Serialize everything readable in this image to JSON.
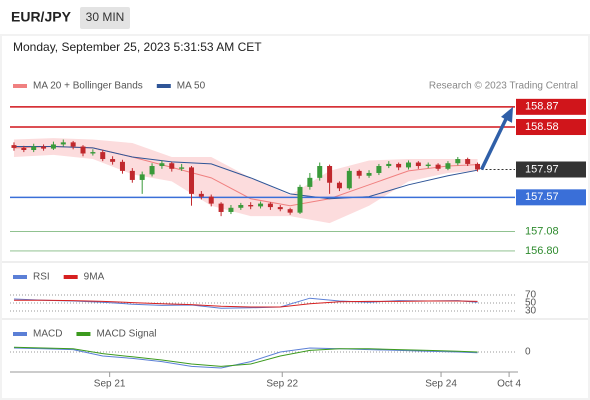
{
  "header": {
    "symbol": "EUR/JPY",
    "interval": "30 MIN",
    "timestamp": "Monday, September 25, 2023 5:31:53 AM CET"
  },
  "chart_data": [
    {
      "type": "candlestick",
      "source": "Research © 2023 Trading Central",
      "up_color": "#3a9a3a",
      "down_color": "#c0282d",
      "open": [
        158.32,
        158.28,
        158.25,
        158.3,
        158.27,
        158.33,
        158.36,
        158.3,
        158.2,
        158.22,
        158.12,
        158.08,
        157.95,
        157.82,
        157.9,
        158.02,
        158.06,
        157.98,
        158.0,
        157.62,
        157.58,
        157.48,
        157.36,
        157.42,
        157.46,
        157.44,
        157.48,
        157.43,
        157.4,
        157.35,
        157.72,
        157.85,
        158.02,
        157.78,
        157.7,
        157.95,
        157.88,
        157.92,
        158.02,
        158.05,
        158.0,
        158.07,
        158.02,
        158.04,
        157.98,
        158.06,
        158.12,
        158.05
      ],
      "high": [
        158.36,
        158.31,
        158.34,
        158.33,
        158.37,
        158.4,
        158.38,
        158.32,
        158.26,
        158.25,
        158.16,
        158.11,
        157.99,
        157.94,
        158.06,
        158.1,
        158.08,
        158.05,
        158.02,
        157.66,
        157.61,
        157.5,
        157.46,
        157.49,
        157.5,
        157.51,
        157.5,
        157.46,
        157.42,
        157.75,
        157.92,
        158.07,
        158.04,
        157.8,
        157.99,
        157.97,
        157.96,
        158.05,
        158.09,
        158.07,
        158.1,
        158.09,
        158.07,
        158.06,
        158.09,
        158.15,
        158.14,
        158.07
      ],
      "low": [
        158.24,
        158.22,
        158.22,
        158.24,
        158.25,
        158.3,
        158.26,
        158.16,
        158.17,
        158.09,
        158.04,
        157.91,
        157.78,
        157.62,
        157.87,
        157.98,
        157.94,
        157.95,
        157.45,
        157.54,
        157.44,
        157.3,
        157.33,
        157.39,
        157.4,
        157.41,
        157.39,
        157.37,
        157.32,
        157.33,
        157.68,
        157.81,
        157.62,
        157.66,
        157.68,
        157.84,
        157.85,
        157.89,
        157.99,
        157.96,
        157.97,
        157.98,
        157.99,
        157.95,
        157.96,
        158.03,
        158.02,
        157.94
      ],
      "close": [
        158.28,
        158.25,
        158.3,
        158.27,
        158.33,
        158.36,
        158.3,
        158.2,
        158.22,
        158.12,
        158.08,
        157.95,
        157.82,
        157.9,
        158.02,
        158.06,
        157.98,
        158.0,
        157.62,
        157.58,
        157.48,
        157.36,
        157.42,
        157.46,
        157.44,
        157.48,
        157.43,
        157.4,
        157.35,
        157.72,
        157.85,
        158.02,
        157.78,
        157.7,
        157.95,
        157.88,
        157.92,
        158.02,
        158.05,
        158.0,
        158.07,
        158.02,
        158.04,
        157.98,
        158.06,
        158.12,
        158.05,
        157.97
      ],
      "series_x": [
        0,
        4,
        8,
        12,
        16,
        20,
        24,
        28,
        32,
        36,
        40,
        44,
        47
      ],
      "series": [
        {
          "name": "MA 20 + Bollinger Bands",
          "color": "#f08080",
          "band_color": "#fbd3d5",
          "values": [
            158.28,
            158.3,
            158.28,
            158.15,
            158.0,
            157.85,
            157.55,
            157.45,
            157.55,
            157.75,
            157.95,
            158.02,
            158.04
          ],
          "upper": [
            158.4,
            158.42,
            158.4,
            158.35,
            158.15,
            158.15,
            157.85,
            157.6,
            157.95,
            158.1,
            158.12,
            158.12,
            158.12
          ],
          "lower": [
            158.15,
            158.18,
            158.12,
            157.9,
            157.8,
            157.45,
            157.3,
            157.3,
            157.2,
            157.45,
            157.8,
            157.92,
            157.95
          ]
        },
        {
          "name": "MA 50",
          "color": "#2f5597",
          "values": [
            158.3,
            158.3,
            158.28,
            158.15,
            158.08,
            158.05,
            157.85,
            157.62,
            157.55,
            157.58,
            157.75,
            157.88,
            157.96
          ]
        }
      ],
      "levels": [
        {
          "value": 158.87,
          "color": "#d0151b",
          "style": "box"
        },
        {
          "value": 158.58,
          "color": "#d0151b",
          "style": "box"
        },
        {
          "value": 157.57,
          "color": "#3a6fd8",
          "style": "box"
        },
        {
          "value": 157.08,
          "color": "#2e8b2e",
          "style": "text"
        },
        {
          "value": {
            "value": 156.8,
            "label": "156.80"
          },
          "color": "#2e8b2e",
          "style": "text"
        }
      ],
      "last": {
        "value": 157.97,
        "color": "#333333"
      },
      "xlim": [
        -0.2,
        58.2
      ],
      "xticks": [
        {
          "value": 9.7,
          "label": "Sep 21"
        },
        {
          "value": 27.2,
          "label": "Sep 22"
        },
        {
          "value": 43.3,
          "label": "Sep 24"
        },
        {
          "value": 50.2,
          "label": "Oct 4"
        }
      ],
      "ylim": [
        156.67,
        159.04
      ]
    },
    {
      "type": "line",
      "x": [
        0,
        3,
        6,
        9,
        12,
        15,
        18,
        21,
        24,
        27,
        30,
        33,
        36,
        39,
        42,
        45,
        47
      ],
      "series": [
        {
          "name": "RSI",
          "color": "#5b7fd6",
          "values": [
            60,
            57,
            55,
            52,
            47,
            44,
            45,
            37,
            38,
            40,
            62,
            55,
            52,
            56,
            55,
            56,
            52
          ]
        },
        {
          "name": "9MA",
          "color": "#d62020",
          "values": [
            57,
            57,
            56,
            54,
            51,
            48,
            46,
            42,
            40,
            40,
            48,
            53,
            54,
            54,
            55,
            55,
            54
          ]
        }
      ],
      "xlim": [
        -0.2,
        58.2
      ],
      "ylim": [
        0,
        100
      ],
      "yticks": [
        70,
        50,
        30
      ]
    },
    {
      "type": "line",
      "x": [
        0,
        3,
        6,
        9,
        12,
        15,
        18,
        21,
        24,
        27,
        30,
        33,
        36,
        39,
        42,
        45,
        47
      ],
      "series": [
        {
          "name": "MACD",
          "color": "#5b7fd6",
          "values": [
            0.05,
            0.04,
            0.03,
            -0.05,
            -0.08,
            -0.12,
            -0.18,
            -0.2,
            -0.12,
            0.0,
            0.05,
            0.04,
            0.03,
            0.02,
            0.01,
            0.0,
            -0.01
          ]
        },
        {
          "name": "MACD Signal",
          "color": "#3c9a1e",
          "values": [
            0.06,
            0.05,
            0.04,
            -0.02,
            -0.06,
            -0.1,
            -0.15,
            -0.18,
            -0.15,
            -0.05,
            0.02,
            0.04,
            0.04,
            0.03,
            0.02,
            0.01,
            0.0
          ]
        }
      ],
      "xlim": [
        -0.2,
        58.2
      ],
      "ylim": [
        -0.25,
        0.2
      ],
      "yticks": [
        0
      ]
    }
  ]
}
